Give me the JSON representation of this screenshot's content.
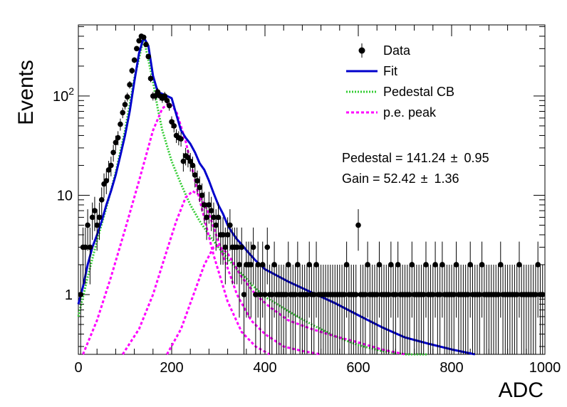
{
  "chart_data": {
    "type": "scatter",
    "xlabel": "ADC",
    "ylabel": "Events",
    "xlim": [
      0,
      1000
    ],
    "ylim": [
      0.25,
      520
    ],
    "y_scale": "log",
    "x_ticks": [
      {
        "value": 0,
        "label": "0"
      },
      {
        "value": 200,
        "label": "200"
      },
      {
        "value": 400,
        "label": "400"
      },
      {
        "value": 600,
        "label": "600"
      },
      {
        "value": 800,
        "label": "800"
      },
      {
        "value": 1000,
        "label": "1000"
      }
    ],
    "y_ticks": [
      {
        "value": 1,
        "label": "1"
      },
      {
        "value": 10,
        "label": "10"
      },
      {
        "value": 100,
        "label": "10",
        "exp": "2"
      }
    ],
    "legend": {
      "placement": "top-right",
      "entries": [
        {
          "label": "Data",
          "marker": "point",
          "color": "#000000"
        },
        {
          "label": "Fit",
          "marker": "solid-line",
          "color": "#0000cc"
        },
        {
          "label": "Pedestal CB",
          "marker": "dotted-line",
          "color": "#33cc33"
        },
        {
          "label": "p.e. peak",
          "marker": "dashed-line",
          "color": "#ff00ff"
        }
      ]
    },
    "annotations": [
      {
        "label": "Pedestal = 141.24",
        "pm": "±",
        "value": "0.95"
      },
      {
        "label": "Gain = 52.42",
        "pm": "±",
        "value": "1.36"
      }
    ],
    "colors": {
      "data": "#000000",
      "fit": "#0000cc",
      "pedestal": "#33cc33",
      "pe": "#ff00ff"
    },
    "series": [
      {
        "name": "Data",
        "style": "points-with-error-bars",
        "x": [
          5,
          10,
          15,
          20,
          25,
          30,
          35,
          40,
          45,
          50,
          55,
          60,
          65,
          70,
          75,
          80,
          85,
          90,
          95,
          100,
          105,
          110,
          115,
          120,
          125,
          130,
          135,
          140,
          145,
          150,
          155,
          160,
          165,
          170,
          175,
          180,
          185,
          190,
          195,
          200,
          205,
          210,
          215,
          220,
          225,
          230,
          235,
          240,
          245,
          250,
          255,
          260,
          265,
          270,
          275,
          280,
          285,
          290,
          295,
          300,
          305,
          310,
          315,
          320,
          325,
          330,
          335,
          340,
          345,
          350,
          355,
          360,
          365,
          370,
          375,
          380,
          385,
          390,
          395,
          400,
          405,
          410,
          415,
          420,
          425,
          430,
          435,
          440,
          445,
          450,
          455,
          460,
          465,
          470,
          475,
          480,
          485,
          490,
          495,
          500,
          505,
          510,
          515,
          520,
          525,
          530,
          535,
          540,
          545,
          550,
          555,
          560,
          565,
          570,
          575,
          580,
          585,
          590,
          595,
          600,
          605,
          610,
          615,
          620,
          625,
          630,
          635,
          640,
          645,
          650,
          655,
          660,
          665,
          670,
          675,
          680,
          685,
          690,
          695,
          700,
          705,
          710,
          715,
          720,
          725,
          730,
          735,
          740,
          745,
          750,
          755,
          760,
          765,
          770,
          775,
          780,
          785,
          790,
          795,
          800,
          805,
          810,
          815,
          820,
          825,
          830,
          835,
          840,
          845,
          850,
          855,
          860,
          865,
          870,
          875,
          880,
          885,
          890,
          895,
          900,
          905,
          910,
          915,
          920,
          925,
          930,
          935,
          940,
          945,
          950,
          955,
          960,
          965,
          970,
          975,
          980,
          985,
          990,
          995
        ],
        "y": [
          1,
          3,
          3,
          5,
          3,
          6,
          7,
          5,
          6,
          9,
          13,
          14,
          18,
          20,
          27,
          34,
          38,
          52,
          68,
          82,
          98,
          130,
          180,
          230,
          300,
          360,
          400,
          390,
          330,
          250,
          150,
          100,
          100,
          110,
          100,
          95,
          100,
          90,
          80,
          55,
          50,
          40,
          38,
          37,
          22,
          25,
          24,
          22,
          20,
          16,
          14,
          12,
          10,
          8,
          6,
          8,
          7,
          6,
          5,
          6,
          4,
          4,
          3,
          4,
          5,
          3,
          3,
          3,
          2,
          3,
          1,
          2,
          2,
          2,
          3,
          1,
          2,
          1,
          2,
          1,
          3,
          1,
          1,
          2,
          1,
          1,
          1,
          1,
          1,
          2,
          1,
          1,
          1,
          2,
          1,
          1,
          1,
          1,
          2,
          1,
          1,
          2,
          1,
          1,
          1,
          1,
          1,
          1,
          1,
          1,
          1,
          1,
          1,
          1,
          2,
          1,
          1,
          1,
          1,
          5,
          1,
          1,
          1,
          2,
          1,
          1,
          1,
          1,
          2,
          1,
          1,
          1,
          1,
          2,
          1,
          1,
          2,
          1,
          1,
          1,
          1,
          1,
          2,
          1,
          1,
          1,
          1,
          1,
          2,
          1,
          1,
          1,
          2,
          1,
          1,
          2,
          1,
          1,
          1,
          1,
          1,
          2,
          1,
          1,
          1,
          1,
          1,
          2,
          1,
          1,
          1,
          1,
          2,
          1,
          1,
          1,
          1,
          1,
          1,
          1,
          2,
          1,
          1,
          1,
          1,
          1,
          1,
          1,
          2,
          1,
          1,
          1,
          1,
          1,
          1,
          1,
          2,
          1,
          1
        ]
      },
      {
        "name": "Fit",
        "style": "solid-line",
        "x": [
          0,
          10,
          20,
          30,
          40,
          50,
          60,
          70,
          80,
          90,
          100,
          110,
          120,
          130,
          140,
          150,
          160,
          170,
          180,
          190,
          200,
          210,
          220,
          230,
          240,
          250,
          260,
          270,
          280,
          290,
          300,
          310,
          320,
          330,
          340,
          350,
          360,
          380,
          400,
          450,
          500,
          550,
          600,
          650,
          700,
          750,
          800,
          850
        ],
        "y": [
          0.8,
          1.2,
          2,
          3,
          4,
          5.5,
          8,
          11,
          16,
          25,
          40,
          70,
          140,
          270,
          390,
          320,
          160,
          110,
          105,
          100,
          95,
          65,
          45,
          38,
          33,
          27,
          21,
          18,
          14,
          10.5,
          8,
          6.5,
          5,
          4.2,
          3.6,
          3.2,
          2.8,
          2.2,
          1.8,
          1.35,
          1.05,
          0.82,
          0.62,
          0.47,
          0.37,
          0.32,
          0.28,
          0.24
        ]
      },
      {
        "name": "Pedestal CB",
        "style": "dotted-line",
        "x": [
          0,
          20,
          40,
          60,
          80,
          100,
          120,
          140,
          160,
          170,
          180,
          200,
          220,
          240,
          260,
          280,
          300,
          320,
          340,
          360,
          380,
          400,
          450,
          500,
          550,
          600,
          650,
          700,
          750
        ],
        "y": [
          0.6,
          1.5,
          3.5,
          7.5,
          17,
          45,
          150,
          380,
          140,
          75,
          45,
          22,
          13,
          8,
          5.5,
          4,
          3,
          2.3,
          1.8,
          1.45,
          1.15,
          0.95,
          0.68,
          0.5,
          0.38,
          0.31,
          0.27,
          0.25,
          0.24
        ]
      },
      {
        "name": "p.e. peak 1",
        "style": "dashed-line",
        "x": [
          10,
          40,
          70,
          100,
          130,
          160,
          180,
          195,
          210,
          230,
          260,
          290,
          320,
          350,
          380,
          410
        ],
        "y": [
          0.25,
          0.55,
          1.5,
          4.5,
          14,
          45,
          75,
          85,
          70,
          35,
          9,
          2.5,
          0.85,
          0.42,
          0.3,
          0.25
        ]
      },
      {
        "name": "p.e. peak 2",
        "style": "dashed-line",
        "x": [
          95,
          130,
          160,
          190,
          210,
          230,
          245,
          260,
          280,
          310,
          340,
          370,
          400,
          440,
          480,
          520
        ],
        "y": [
          0.25,
          0.45,
          1,
          2.8,
          5.5,
          9.5,
          11,
          10,
          6.5,
          2.5,
          1,
          0.55,
          0.4,
          0.3,
          0.27,
          0.25
        ]
      },
      {
        "name": "p.e. peak 3",
        "style": "dashed-line",
        "x": [
          190,
          220,
          250,
          270,
          290,
          300,
          320,
          350,
          380,
          410,
          450,
          500,
          550,
          600,
          650,
          700
        ],
        "y": [
          0.25,
          0.45,
          1.1,
          2,
          3,
          3.1,
          2.6,
          1.5,
          1,
          0.75,
          0.55,
          0.45,
          0.38,
          0.33,
          0.28,
          0.25
        ]
      }
    ]
  }
}
